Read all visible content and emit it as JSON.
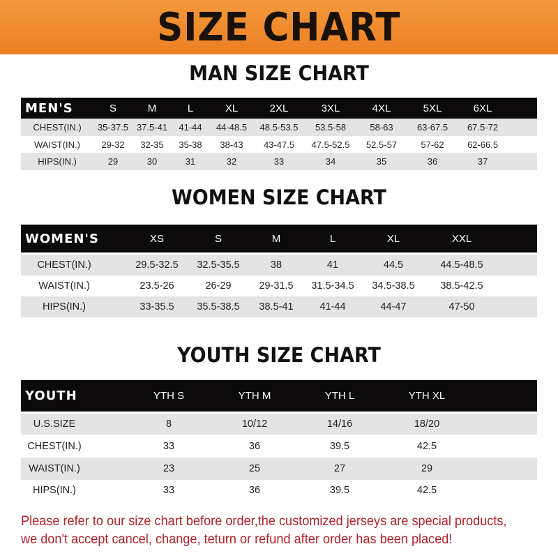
{
  "banner_title": "SIZE CHART",
  "men": {
    "title": "MAN SIZE CHART",
    "header": [
      "MEN'S",
      "S",
      "M",
      "L",
      "XL",
      "2XL",
      "3XL",
      "4XL",
      "5XL",
      "6XL"
    ],
    "rows": [
      [
        "CHEST(IN.)",
        "35-37.5",
        "37.5-41",
        "41-44",
        "44-48.5",
        "48.5-53.5",
        "53.5-58",
        "58-63",
        "63-67.5",
        "67.5-72"
      ],
      [
        "WAIST(IN.)",
        "29-32",
        "32-35",
        "35-38",
        "38-43",
        "43-47.5",
        "47.5-52.5",
        "52.5-57",
        "57-62",
        "62-66.5"
      ],
      [
        "HIPS(IN.)",
        "29",
        "30",
        "31",
        "32",
        "33",
        "34",
        "35",
        "36",
        "37"
      ]
    ]
  },
  "women": {
    "title": "WOMEN SIZE CHART",
    "header": [
      "WOMEN'S",
      "XS",
      "S",
      "M",
      "L",
      "XL",
      "XXL"
    ],
    "rows": [
      [
        "CHEST(IN.)",
        "29.5-32.5",
        "32.5-35.5",
        "38",
        "41",
        "44.5",
        "44.5-48.5"
      ],
      [
        "WAIST(IN.)",
        "23.5-26",
        "26-29",
        "29-31.5",
        "31.5-34.5",
        "34.5-38.5",
        "38.5-42.5"
      ],
      [
        "HIPS(IN.)",
        "33-35.5",
        "35.5-38.5",
        "38.5-41",
        "41-44",
        "44-47",
        "47-50"
      ]
    ]
  },
  "youth": {
    "title": "YOUTH SIZE CHART",
    "header": [
      "YOUTH",
      "YTH S",
      "YTH M",
      "YTH L",
      "YTH XL"
    ],
    "rows": [
      [
        "U.S.SIZE",
        "8",
        "10/12",
        "14/16",
        "18/20"
      ],
      [
        "CHEST(IN.)",
        "33",
        "36",
        "39.5",
        "42.5"
      ],
      [
        "WAIST(IN.)",
        "23",
        "25",
        "27",
        "29"
      ],
      [
        "HIPS(IN.)",
        "33",
        "36",
        "39.5",
        "42.5"
      ]
    ]
  },
  "notice": {
    "line1": "Please refer to our size chart before order,the customized jerseys are special products,",
    "line2": "we don't accept cancel, change, teturn or refund after order has been placed!"
  }
}
